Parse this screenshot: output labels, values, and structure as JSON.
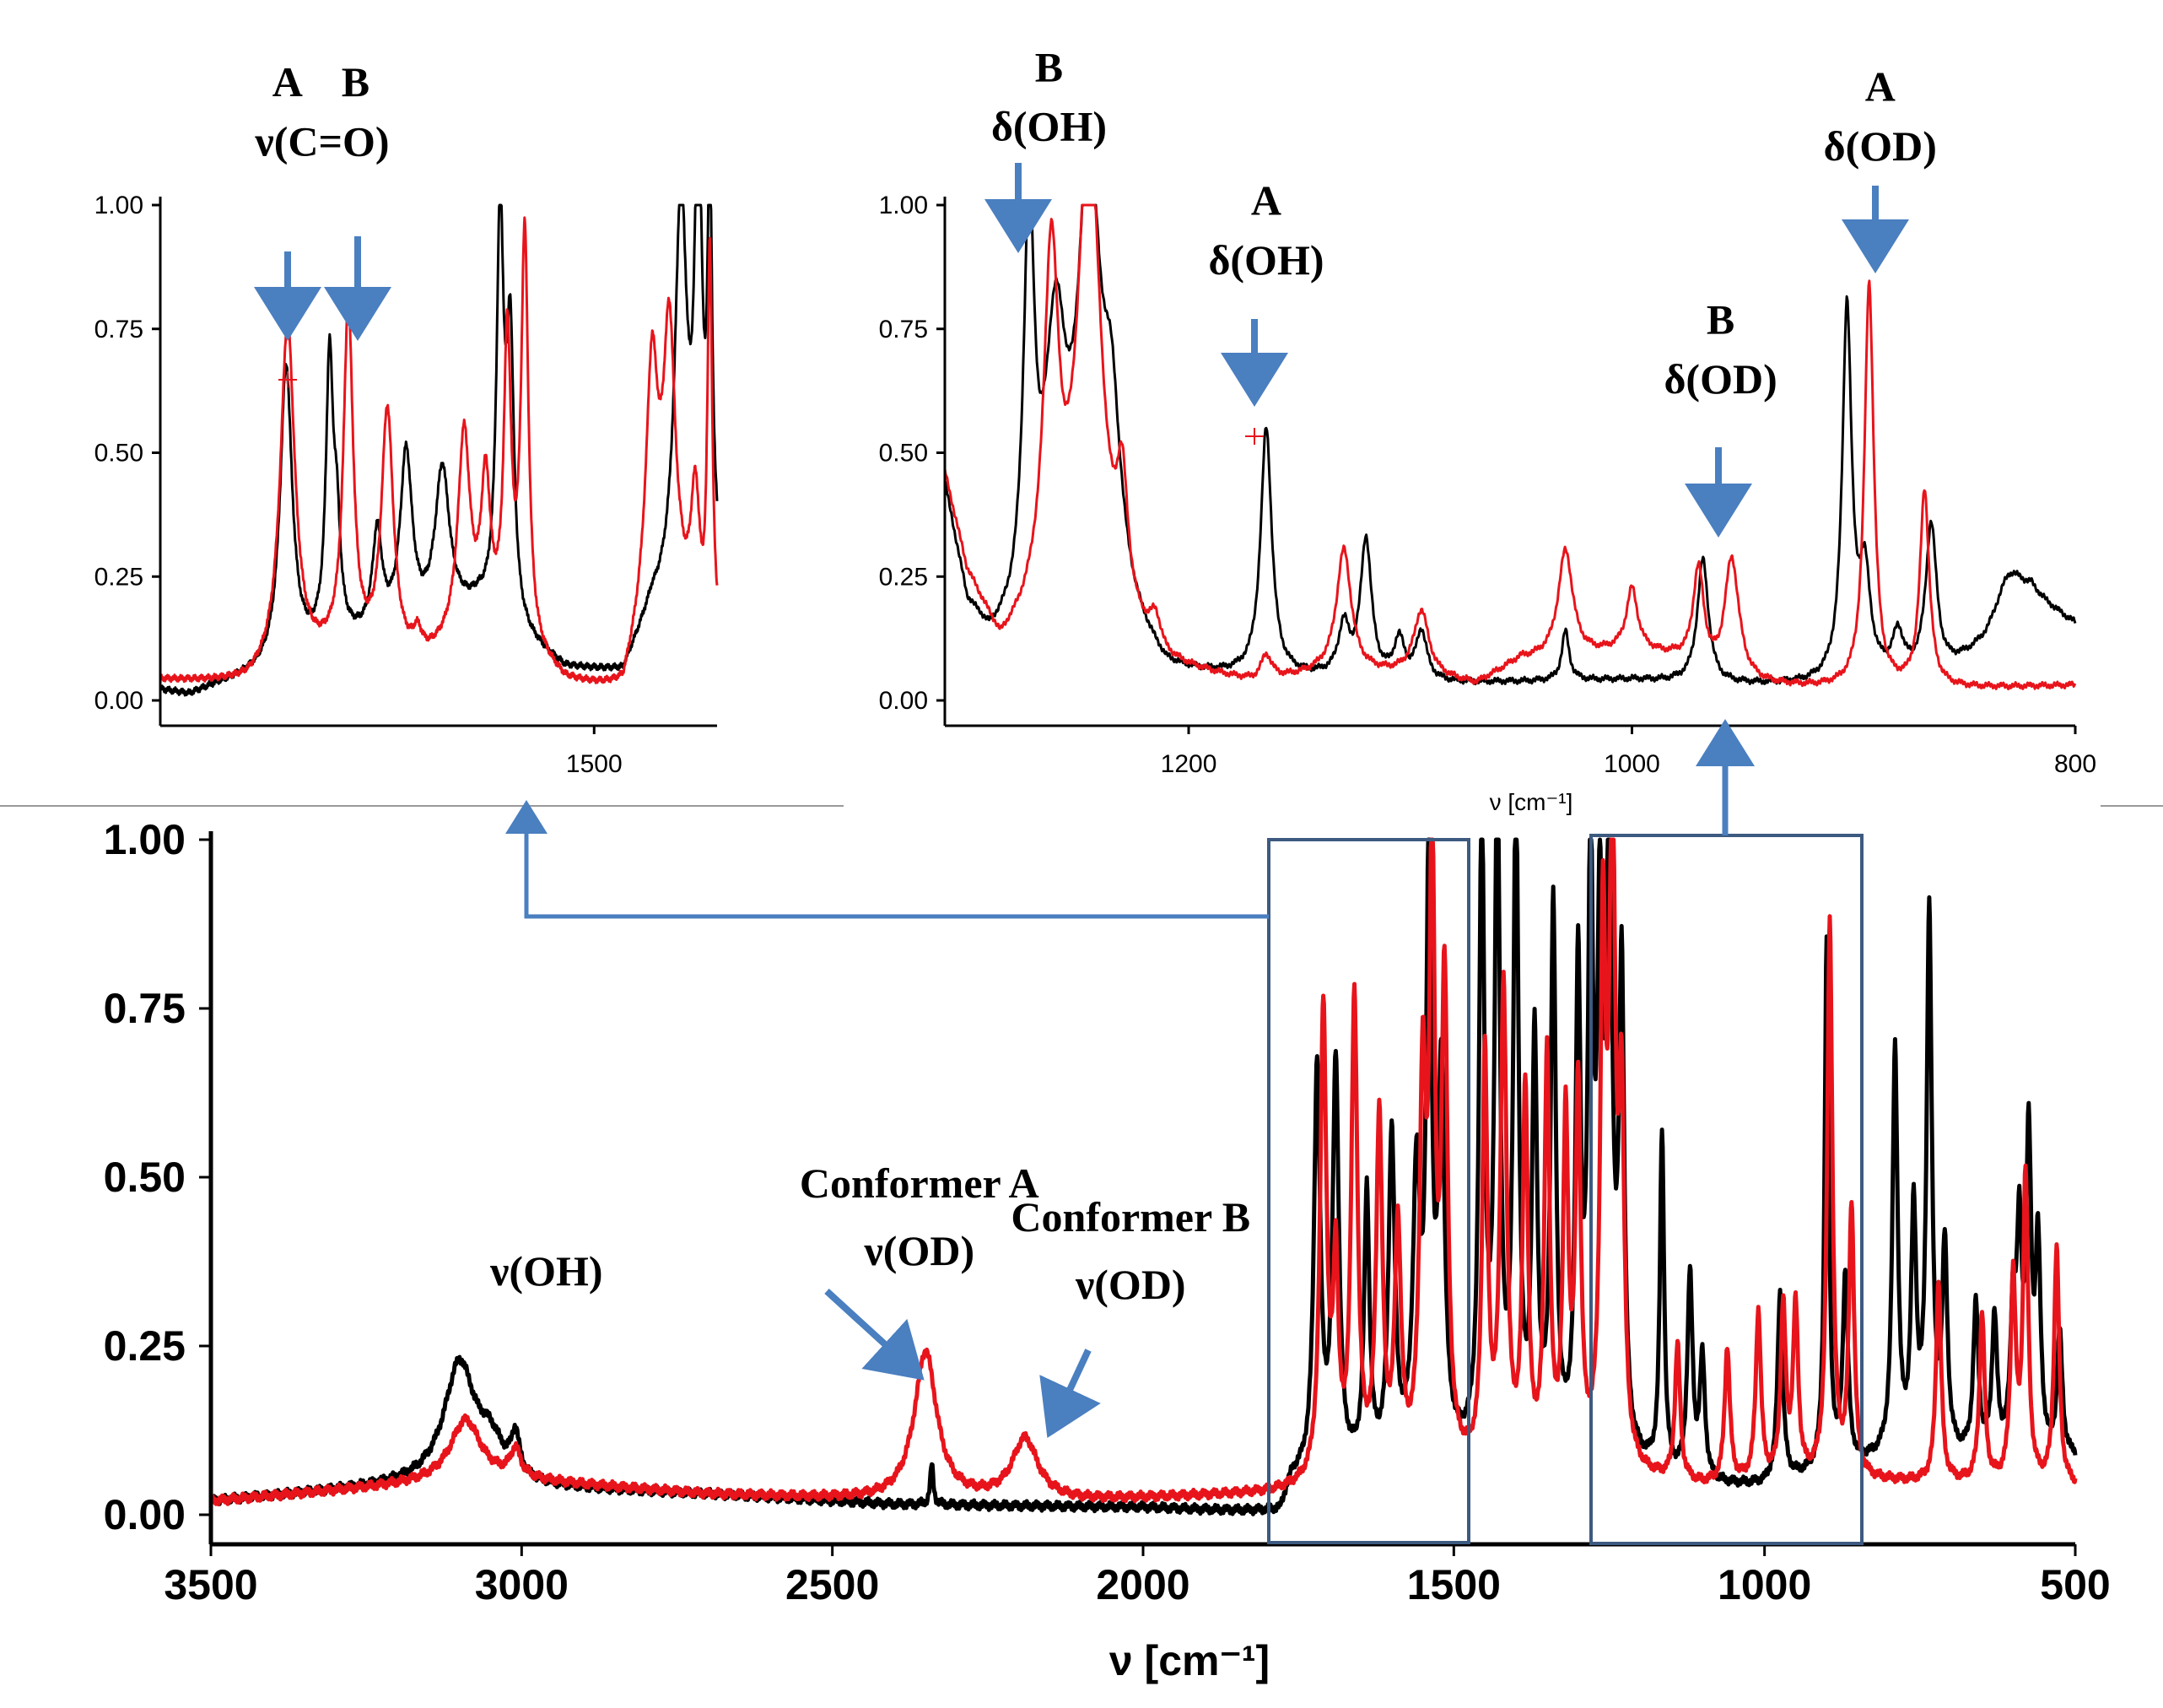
{
  "colors": {
    "series_a": "#000000",
    "series_b": "#e8141b",
    "arrow": "#4a7fc0",
    "box": "#3d5a80"
  },
  "chart_data": [
    {
      "id": "main",
      "type": "line",
      "xlabel": "ν [cm⁻¹]",
      "x_range": [
        3500,
        500
      ],
      "ylim": [
        0,
        1
      ],
      "x_ticks": [
        3500,
        3000,
        2500,
        2000,
        1500,
        1000,
        500
      ],
      "y_ticks": [
        "0.00",
        "0.25",
        "0.50",
        "0.75",
        "1.00"
      ],
      "annotations": [
        {
          "text": "ν(OH)",
          "x": 2960,
          "y": 0.34
        },
        {
          "text": "Conformer A",
          "x": 2360,
          "y": 0.47
        },
        {
          "text": "ν(OD)",
          "x": 2360,
          "y": 0.37
        },
        {
          "text": "Conformer B",
          "x": 2020,
          "y": 0.42
        },
        {
          "text": "ν(OD)",
          "x": 2020,
          "y": 0.32
        }
      ],
      "series": [
        {
          "name": "black",
          "baseline": [
            [
              3500,
              0.02
            ],
            [
              3100,
              0.05
            ],
            [
              3000,
              0.04
            ],
            [
              2700,
              0.03
            ],
            [
              2400,
              0.015
            ],
            [
              2000,
              0.01
            ],
            [
              1780,
              0.0
            ],
            [
              1760,
              0.05
            ],
            [
              1500,
              0.08
            ],
            [
              1200,
              0.06
            ],
            [
              1100,
              0.04
            ],
            [
              1000,
              0.04
            ],
            [
              800,
              0.08
            ],
            [
              600,
              0.08
            ],
            [
              500,
              0.08
            ]
          ],
          "peaks": [
            [
              3100,
              0.17,
              30
            ],
            [
              3050,
              0.05,
              25
            ],
            [
              3010,
              0.06,
              8
            ],
            [
              2340,
              0.06,
              3
            ],
            [
              1720,
              0.6,
              6
            ],
            [
              1690,
              0.6,
              6
            ],
            [
              1640,
              0.4,
              5
            ],
            [
              1600,
              0.48,
              6
            ],
            [
              1560,
              0.4,
              7
            ],
            [
              1540,
              0.9,
              5
            ],
            [
              1520,
              0.55,
              6
            ],
            [
              1455,
              0.95,
              5
            ],
            [
              1430,
              1.0,
              5
            ],
            [
              1400,
              0.98,
              5
            ],
            [
              1370,
              0.6,
              5
            ],
            [
              1340,
              0.8,
              5
            ],
            [
              1300,
              0.7,
              5
            ],
            [
              1280,
              0.85,
              5
            ],
            [
              1265,
              0.7,
              5
            ],
            [
              1250,
              0.9,
              6
            ],
            [
              1230,
              0.7,
              5
            ],
            [
              1165,
              0.5,
              4
            ],
            [
              1120,
              0.3,
              5
            ],
            [
              1100,
              0.18,
              5
            ],
            [
              975,
              0.28,
              5
            ],
            [
              900,
              0.78,
              4
            ],
            [
              870,
              0.28,
              5
            ],
            [
              790,
              0.6,
              5
            ],
            [
              760,
              0.35,
              5
            ],
            [
              735,
              0.8,
              5
            ],
            [
              710,
              0.3,
              5
            ],
            [
              660,
              0.22,
              5
            ],
            [
              630,
              0.2,
              5
            ],
            [
              600,
              0.2,
              5
            ],
            [
              590,
              0.3,
              5
            ],
            [
              575,
              0.45,
              5
            ],
            [
              560,
              0.3,
              5
            ],
            [
              525,
              0.18,
              5
            ]
          ]
        },
        {
          "name": "red",
          "baseline": [
            [
              3500,
              0.02
            ],
            [
              3100,
              0.05
            ],
            [
              3000,
              0.05
            ],
            [
              2700,
              0.03
            ],
            [
              2400,
              0.02
            ],
            [
              2100,
              0.02
            ],
            [
              1800,
              0.03
            ],
            [
              1500,
              0.06
            ],
            [
              1300,
              0.06
            ],
            [
              1200,
              0.05
            ],
            [
              1100,
              0.04
            ],
            [
              900,
              0.05
            ],
            [
              500,
              0.04
            ]
          ],
          "peaks": [
            [
              3090,
              0.09,
              30
            ],
            [
              3010,
              0.04,
              10
            ],
            [
              2350,
              0.22,
              22
            ],
            [
              2190,
              0.09,
              25
            ],
            [
              1710,
              0.7,
              6
            ],
            [
              1690,
              0.3,
              5
            ],
            [
              1660,
              0.7,
              6
            ],
            [
              1620,
              0.52,
              6
            ],
            [
              1590,
              0.35,
              6
            ],
            [
              1550,
              0.55,
              6
            ],
            [
              1535,
              0.9,
              5
            ],
            [
              1515,
              0.7,
              6
            ],
            [
              1450,
              0.6,
              5
            ],
            [
              1420,
              0.7,
              6
            ],
            [
              1385,
              0.55,
              5
            ],
            [
              1350,
              0.6,
              5
            ],
            [
              1320,
              0.5,
              5
            ],
            [
              1300,
              0.55,
              5
            ],
            [
              1260,
              0.75,
              5
            ],
            [
              1245,
              0.95,
              6
            ],
            [
              1230,
              0.5,
              5
            ],
            [
              1140,
              0.2,
              5
            ],
            [
              1060,
              0.2,
              5
            ],
            [
              1010,
              0.25,
              5
            ],
            [
              970,
              0.25,
              5
            ],
            [
              950,
              0.25,
              5
            ],
            [
              895,
              0.82,
              5
            ],
            [
              860,
              0.4,
              5
            ],
            [
              720,
              0.3,
              5
            ],
            [
              650,
              0.25,
              5
            ],
            [
              600,
              0.3,
              5
            ],
            [
              580,
              0.45,
              5
            ],
            [
              530,
              0.35,
              5
            ]
          ]
        }
      ]
    },
    {
      "id": "inset-left",
      "type": "line",
      "xlabel": "",
      "x_range": [
        1800,
        1415
      ],
      "ylim": [
        0,
        1
      ],
      "x_ticks": [
        1500
      ],
      "y_ticks": [
        "0.00",
        "0.25",
        "0.50",
        "0.75",
        "1.00"
      ],
      "annotations": [
        {
          "text": "A",
          "x": 1712,
          "y": 1.22
        },
        {
          "text": "B",
          "x": 1665,
          "y": 1.22
        },
        {
          "text": "ν(C=O)",
          "x": 1688,
          "y": 1.1
        }
      ],
      "series": [
        {
          "name": "black",
          "baseline": [
            [
              1800,
              0.02
            ],
            [
              1780,
              0.01
            ],
            [
              1760,
              0.03
            ],
            [
              1720,
              0.06
            ],
            [
              1690,
              0.1
            ],
            [
              1620,
              0.14
            ],
            [
              1580,
              0.18
            ],
            [
              1550,
              0.12
            ],
            [
              1520,
              0.06
            ],
            [
              1480,
              0.05
            ],
            [
              1460,
              0.18
            ],
            [
              1440,
              0.2
            ],
            [
              1420,
              0.2
            ],
            [
              1415,
              0.22
            ]
          ],
          "peaks": [
            [
              1713,
              0.6,
              5
            ],
            [
              1683,
              0.55,
              3
            ],
            [
              1678,
              0.2,
              3
            ],
            [
              1650,
              0.2,
              4
            ],
            [
              1630,
              0.35,
              5
            ],
            [
              1605,
              0.3,
              6
            ],
            [
              1565,
              0.8,
              3
            ],
            [
              1558,
              0.55,
              3
            ],
            [
              1440,
              0.8,
              5
            ],
            [
              1428,
              0.9,
              3
            ],
            [
              1420,
              0.78,
              2
            ]
          ]
        },
        {
          "name": "red",
          "baseline": [
            [
              1800,
              0.04
            ],
            [
              1740,
              0.03
            ],
            [
              1720,
              0.05
            ],
            [
              1680,
              0.08
            ],
            [
              1620,
              0.06
            ],
            [
              1590,
              0.12
            ],
            [
              1550,
              0.1
            ],
            [
              1520,
              0.03
            ],
            [
              1480,
              0.01
            ],
            [
              1460,
              0.2
            ],
            [
              1440,
              0.15
            ],
            [
              1425,
              0.05
            ],
            [
              1415,
              0.08
            ]
          ],
          "peaks": [
            [
              1712,
              0.7,
              6
            ],
            [
              1670,
              0.7,
              4
            ],
            [
              1643,
              0.5,
              5
            ],
            [
              1622,
              0.05,
              4
            ],
            [
              1590,
              0.4,
              5
            ],
            [
              1575,
              0.3,
              4
            ],
            [
              1560,
              0.6,
              3
            ],
            [
              1548,
              0.82,
              3
            ],
            [
              1460,
              0.45,
              5
            ],
            [
              1448,
              0.55,
              5
            ],
            [
              1430,
              0.3,
              4
            ],
            [
              1420,
              0.8,
              2
            ]
          ]
        }
      ]
    },
    {
      "id": "inset-right",
      "type": "line",
      "xlabel": "ν [cm⁻¹]",
      "x_range": [
        1310,
        800
      ],
      "ylim": [
        0,
        1
      ],
      "x_ticks": [
        1200,
        1000,
        800
      ],
      "y_ticks": [
        "0.00",
        "0.25",
        "0.50",
        "0.75",
        "1.00"
      ],
      "annotations": [
        {
          "text": "B",
          "x": 1263,
          "y": 1.25
        },
        {
          "text": "δ(OH)",
          "x": 1263,
          "y": 1.13
        },
        {
          "text": "A",
          "x": 1165,
          "y": 0.98
        },
        {
          "text": "δ(OH)",
          "x": 1165,
          "y": 0.86
        },
        {
          "text": "B",
          "x": 960,
          "y": 0.74
        },
        {
          "text": "δ(OD)",
          "x": 960,
          "y": 0.62
        },
        {
          "text": "A",
          "x": 888,
          "y": 1.21
        },
        {
          "text": "δ(OD)",
          "x": 888,
          "y": 1.09
        }
      ],
      "series": [
        {
          "name": "black",
          "baseline": [
            [
              1310,
              0.42
            ],
            [
              1300,
              0.18
            ],
            [
              1290,
              0.1
            ],
            [
              1230,
              0.12
            ],
            [
              1210,
              0.04
            ],
            [
              1180,
              0.04
            ],
            [
              1140,
              0.04
            ],
            [
              1100,
              0.03
            ],
            [
              1000,
              0.04
            ],
            [
              960,
              0.03
            ],
            [
              920,
              0.03
            ],
            [
              860,
              0.05
            ],
            [
              840,
              0.1
            ],
            [
              820,
              0.2
            ],
            [
              800,
              0.15
            ]
          ],
          "peaks": [
            [
              1272,
              0.8,
              3
            ],
            [
              1260,
              0.55,
              6
            ],
            [
              1245,
              0.9,
              6
            ],
            [
              1235,
              0.35,
              5
            ],
            [
              1165,
              0.5,
              3
            ],
            [
              1130,
              0.1,
              3
            ],
            [
              1120,
              0.28,
              3
            ],
            [
              1105,
              0.08,
              3
            ],
            [
              1095,
              0.1,
              3
            ],
            [
              1030,
              0.1,
              2
            ],
            [
              968,
              0.25,
              3
            ],
            [
              903,
              0.75,
              2.5
            ],
            [
              895,
              0.2,
              3
            ],
            [
              880,
              0.08,
              3
            ],
            [
              865,
              0.3,
              3
            ],
            [
              830,
              0.1,
              8
            ]
          ]
        },
        {
          "name": "red",
          "baseline": [
            [
              1310,
              0.45
            ],
            [
              1300,
              0.25
            ],
            [
              1285,
              0.1
            ],
            [
              1270,
              0.15
            ],
            [
              1240,
              0.18
            ],
            [
              1230,
              0.12
            ],
            [
              1210,
              0.06
            ],
            [
              1170,
              0.03
            ],
            [
              1140,
              0.05
            ],
            [
              1100,
              0.05
            ],
            [
              1070,
              0.03
            ],
            [
              1050,
              0.08
            ],
            [
              1030,
              0.08
            ],
            [
              1000,
              0.1
            ],
            [
              980,
              0.08
            ],
            [
              960,
              0.03
            ],
            [
              900,
              0.02
            ],
            [
              870,
              0.02
            ],
            [
              800,
              0.03
            ]
          ],
          "peaks": [
            [
              1262,
              0.7,
              4
            ],
            [
              1245,
              0.97,
              6
            ],
            [
              1230,
              0.25,
              3
            ],
            [
              1215,
              0.06,
              3
            ],
            [
              1165,
              0.05,
              3
            ],
            [
              1130,
              0.25,
              4
            ],
            [
              1095,
              0.13,
              4
            ],
            [
              1030,
              0.22,
              4
            ],
            [
              1000,
              0.12,
              3
            ],
            [
              970,
              0.2,
              3
            ],
            [
              955,
              0.25,
              4
            ],
            [
              893,
              0.82,
              2.5
            ],
            [
              868,
              0.4,
              2.5
            ]
          ]
        }
      ]
    }
  ]
}
